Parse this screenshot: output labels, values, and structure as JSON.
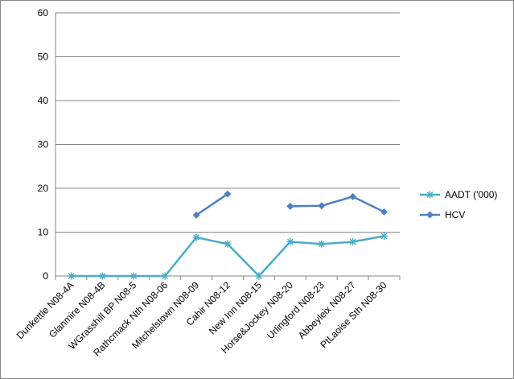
{
  "chart_data": {
    "type": "line",
    "title": "",
    "xlabel": "",
    "ylabel": "",
    "ylim": [
      0,
      60
    ],
    "yticks": [
      0,
      10,
      20,
      30,
      40,
      50,
      60
    ],
    "grid": true,
    "legend_position": "right",
    "categories": [
      "Dunkettle N08-4A",
      "Glanmire N08-4B",
      "WGrasshill BP N08-5",
      "Rathcmack Nth N08-06",
      "Mitchelstown N08-09",
      "Cahir N08-12",
      "New Inn N08-15",
      "Horse&Jockey N08-20",
      "Urlingford N08-23",
      "Abbeyleix N08-27",
      "PtLaoise Sth N08-30"
    ],
    "series": [
      {
        "name": "AADT ('000)",
        "color": "#4BACC6",
        "marker": "star",
        "values": [
          0,
          0,
          0,
          0,
          8.8,
          7.3,
          0,
          7.8,
          7.3,
          7.8,
          9.1
        ]
      },
      {
        "name": "HCV",
        "color": "#4F81BD",
        "marker": "diamond",
        "values": [
          null,
          null,
          null,
          null,
          13.9,
          18.7,
          null,
          15.9,
          16.0,
          18.1,
          14.6
        ]
      }
    ]
  }
}
